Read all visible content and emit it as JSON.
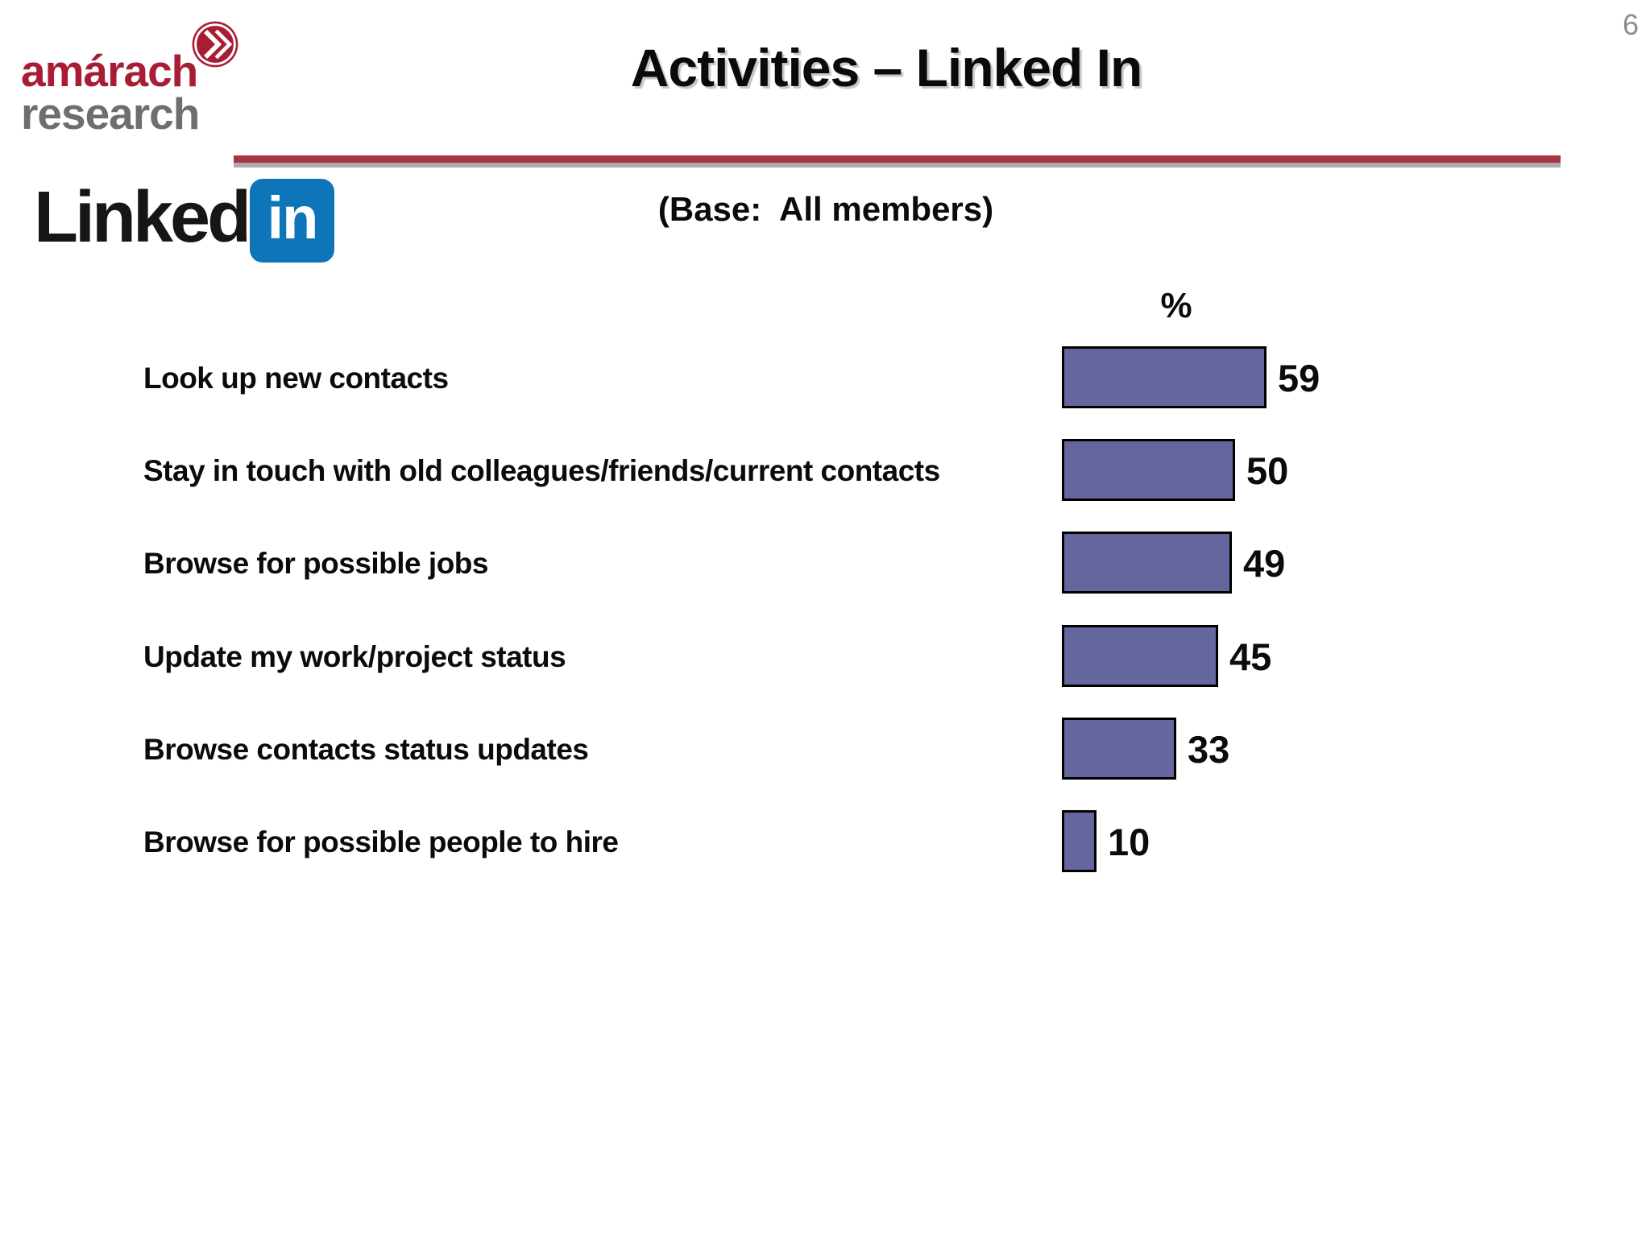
{
  "page_number": "6",
  "brand": {
    "name_line1": "amárach",
    "name_line2": "research"
  },
  "title": "Activities – Linked In",
  "linkedin": {
    "wordmark": "Linked",
    "badge_text": "in"
  },
  "base_note": "(Base:  All members)",
  "chart_data": {
    "type": "bar",
    "orientation": "horizontal",
    "title": "Activities – Linked In",
    "unit_label": "%",
    "categories": [
      "Look up new contacts",
      "Stay in touch with old colleagues/friends/current contacts",
      "Browse for possible jobs",
      "Update my work/project status",
      "Browse contacts status updates",
      "Browse for possible people to hire"
    ],
    "values": [
      59,
      50,
      49,
      45,
      33,
      10
    ],
    "xlim": [
      0,
      100
    ],
    "grid": false,
    "legend": "none",
    "value_labels_shown": true,
    "bar_color": "#64669D",
    "bar_border_color": "#000000"
  },
  "colors": {
    "brand_red": "#A81D34",
    "brand_gray": "#6D6E70",
    "rule_red": "#A43543",
    "rule_gray": "#ABABAB",
    "linkedin_blue": "#0E76B8",
    "page_number_gray": "#8C8C8C",
    "title_color": "#0A0A0A"
  }
}
